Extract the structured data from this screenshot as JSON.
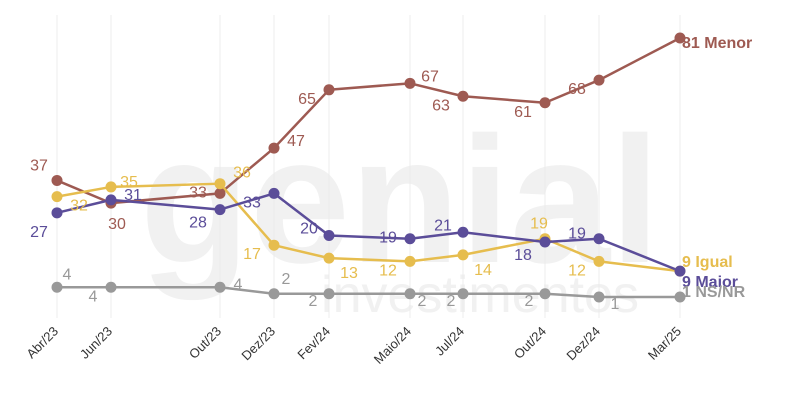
{
  "watermark": {
    "brand": "genial",
    "sub": "investimentos"
  },
  "chart_data": {
    "type": "line",
    "title": "",
    "xlabel": "",
    "ylabel": "",
    "ylim": [
      0,
      85
    ],
    "grid": "vertical",
    "x": [
      "Abr/23",
      "Jun/23",
      "Out/23",
      "Dez/23",
      "Fev/24",
      "Maio/24",
      "Jul/24",
      "Out/24",
      "Dez/24",
      "Mar/25"
    ],
    "series": [
      {
        "name": "Menor",
        "color": "#9e5a52",
        "values": [
          37,
          30,
          33,
          47,
          65,
          67,
          63,
          61,
          68,
          81
        ],
        "end_label": "81 Menor"
      },
      {
        "name": "Igual",
        "color": "#e6bd4e",
        "values": [
          32,
          35,
          36,
          17,
          13,
          12,
          14,
          19,
          12,
          9
        ],
        "end_label": "9 Igual"
      },
      {
        "name": "Maior",
        "color": "#5b4d99",
        "values": [
          27,
          31,
          28,
          33,
          20,
          19,
          21,
          18,
          19,
          9
        ],
        "end_label": "9 Maior"
      },
      {
        "name": "NS/NR",
        "color": "#999999",
        "values": [
          4,
          4,
          4,
          2,
          2,
          2,
          2,
          2,
          1,
          1
        ],
        "end_label": "1 NS/NR"
      }
    ]
  }
}
